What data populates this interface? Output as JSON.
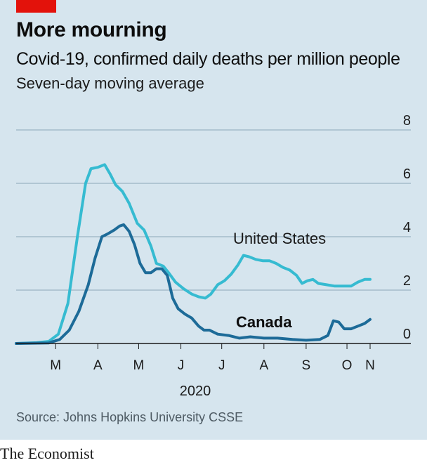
{
  "header": {
    "title": "More mourning",
    "subtitle": "Covid-19, confirmed daily deaths per million people",
    "subtitle2": "Seven-day moving average"
  },
  "footer": {
    "source": "Source: Johns Hopkins University CSSE",
    "brand": "The Economist"
  },
  "colors": {
    "background": "#d6e5ee",
    "accent_red": "#e3120b",
    "united_states": "#36bbd1",
    "canada": "#1d6b98",
    "grid": "#8ca8b8"
  },
  "chart_data": {
    "type": "line",
    "title": "Covid-19, confirmed daily deaths per million people",
    "subtitle": "Seven-day moving average",
    "xlabel": "2020",
    "ylabel": "",
    "ylim": [
      0,
      8
    ],
    "yticks": [
      "0",
      "2",
      "4",
      "6",
      "8"
    ],
    "xlim": [
      "2020-02-15",
      "2020-11-01"
    ],
    "month_ticks": [
      {
        "label": "M",
        "date": "2020-03-15"
      },
      {
        "label": "A",
        "date": "2020-04-15"
      },
      {
        "label": "M",
        "date": "2020-05-15"
      },
      {
        "label": "J",
        "date": "2020-06-15"
      },
      {
        "label": "J",
        "date": "2020-07-15"
      },
      {
        "label": "A",
        "date": "2020-08-15"
      },
      {
        "label": "S",
        "date": "2020-09-15"
      },
      {
        "label": "O",
        "date": "2020-10-15"
      },
      {
        "label": "N",
        "date": "2020-11-01"
      }
    ],
    "grid": true,
    "series": [
      {
        "name": "United States",
        "label": "United States",
        "color": "#36bbd1",
        "points": [
          [
            "2020-02-15",
            0.0
          ],
          [
            "2020-03-01",
            0.03
          ],
          [
            "2020-03-10",
            0.08
          ],
          [
            "2020-03-17",
            0.35
          ],
          [
            "2020-03-24",
            1.5
          ],
          [
            "2020-03-31",
            4.0
          ],
          [
            "2020-04-06",
            6.0
          ],
          [
            "2020-04-10",
            6.55
          ],
          [
            "2020-04-15",
            6.6
          ],
          [
            "2020-04-20",
            6.7
          ],
          [
            "2020-04-24",
            6.35
          ],
          [
            "2020-04-28",
            5.95
          ],
          [
            "2020-05-03",
            5.7
          ],
          [
            "2020-05-08",
            5.25
          ],
          [
            "2020-05-14",
            4.5
          ],
          [
            "2020-05-19",
            4.25
          ],
          [
            "2020-05-24",
            3.65
          ],
          [
            "2020-05-28",
            3.0
          ],
          [
            "2020-06-02",
            2.9
          ],
          [
            "2020-06-06",
            2.65
          ],
          [
            "2020-06-11",
            2.3
          ],
          [
            "2020-06-17",
            2.05
          ],
          [
            "2020-06-23",
            1.85
          ],
          [
            "2020-06-28",
            1.75
          ],
          [
            "2020-07-03",
            1.7
          ],
          [
            "2020-07-07",
            1.85
          ],
          [
            "2020-07-12",
            2.2
          ],
          [
            "2020-07-17",
            2.35
          ],
          [
            "2020-07-22",
            2.6
          ],
          [
            "2020-07-27",
            2.95
          ],
          [
            "2020-07-31",
            3.3
          ],
          [
            "2020-08-04",
            3.25
          ],
          [
            "2020-08-09",
            3.15
          ],
          [
            "2020-08-14",
            3.1
          ],
          [
            "2020-08-19",
            3.1
          ],
          [
            "2020-08-24",
            3.0
          ],
          [
            "2020-08-29",
            2.85
          ],
          [
            "2020-09-03",
            2.75
          ],
          [
            "2020-09-08",
            2.55
          ],
          [
            "2020-09-12",
            2.25
          ],
          [
            "2020-09-16",
            2.35
          ],
          [
            "2020-09-20",
            2.4
          ],
          [
            "2020-09-24",
            2.25
          ],
          [
            "2020-09-30",
            2.2
          ],
          [
            "2020-10-06",
            2.15
          ],
          [
            "2020-10-12",
            2.15
          ],
          [
            "2020-10-18",
            2.15
          ],
          [
            "2020-10-23",
            2.3
          ],
          [
            "2020-10-28",
            2.4
          ],
          [
            "2020-11-01",
            2.4
          ]
        ]
      },
      {
        "name": "Canada",
        "label": "Canada",
        "color": "#1d6b98",
        "points": [
          [
            "2020-02-15",
            0.0
          ],
          [
            "2020-03-10",
            0.02
          ],
          [
            "2020-03-18",
            0.15
          ],
          [
            "2020-03-25",
            0.5
          ],
          [
            "2020-04-01",
            1.2
          ],
          [
            "2020-04-08",
            2.2
          ],
          [
            "2020-04-13",
            3.2
          ],
          [
            "2020-04-18",
            4.0
          ],
          [
            "2020-04-22",
            4.1
          ],
          [
            "2020-04-27",
            4.25
          ],
          [
            "2020-05-01",
            4.4
          ],
          [
            "2020-05-04",
            4.45
          ],
          [
            "2020-05-08",
            4.2
          ],
          [
            "2020-05-12",
            3.7
          ],
          [
            "2020-05-16",
            3.0
          ],
          [
            "2020-05-20",
            2.65
          ],
          [
            "2020-05-24",
            2.65
          ],
          [
            "2020-05-28",
            2.8
          ],
          [
            "2020-06-01",
            2.8
          ],
          [
            "2020-06-05",
            2.55
          ],
          [
            "2020-06-09",
            1.7
          ],
          [
            "2020-06-13",
            1.3
          ],
          [
            "2020-06-18",
            1.1
          ],
          [
            "2020-06-23",
            0.95
          ],
          [
            "2020-06-28",
            0.65
          ],
          [
            "2020-07-02",
            0.5
          ],
          [
            "2020-07-06",
            0.5
          ],
          [
            "2020-07-12",
            0.35
          ],
          [
            "2020-07-20",
            0.3
          ],
          [
            "2020-07-28",
            0.2
          ],
          [
            "2020-08-05",
            0.25
          ],
          [
            "2020-08-15",
            0.2
          ],
          [
            "2020-08-25",
            0.2
          ],
          [
            "2020-09-05",
            0.15
          ],
          [
            "2020-09-15",
            0.12
          ],
          [
            "2020-09-25",
            0.15
          ],
          [
            "2020-10-01",
            0.3
          ],
          [
            "2020-10-05",
            0.85
          ],
          [
            "2020-10-09",
            0.8
          ],
          [
            "2020-10-13",
            0.55
          ],
          [
            "2020-10-18",
            0.55
          ],
          [
            "2020-10-23",
            0.65
          ],
          [
            "2020-10-28",
            0.75
          ],
          [
            "2020-11-01",
            0.9
          ]
        ]
      }
    ]
  }
}
